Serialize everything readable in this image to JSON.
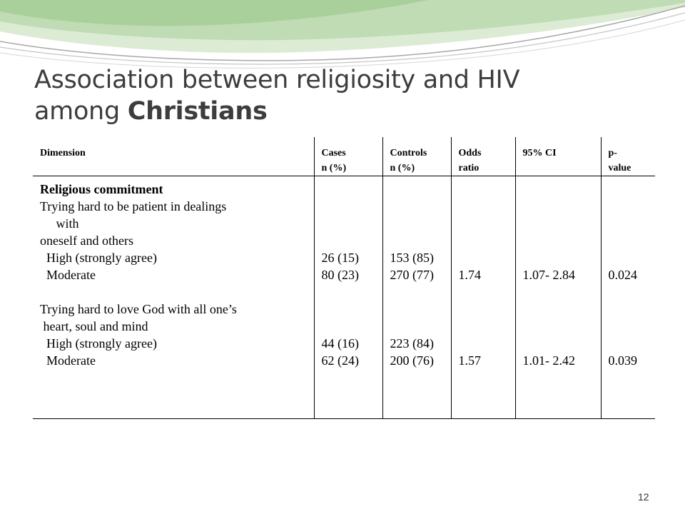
{
  "slide": {
    "title_line1": "Association between religiosity and HIV",
    "title_line2_prefix": "among ",
    "title_line2_bold": "Christians",
    "page_number": "12"
  },
  "table": {
    "headers": {
      "dimension": "Dimension",
      "cases_l1": "Cases",
      "cases_l2": "n (%)",
      "controls_l1": "Controls",
      "controls_l2": "n (%)",
      "odds_l1": "Odds",
      "odds_l2": "ratio",
      "ci": "95% CI",
      "p_l1": "p-",
      "p_l2": "value"
    },
    "dimension_lines": {
      "heading": "Religious commitment",
      "l1": "Trying hard to be patient in dealings",
      "l2": "     with",
      "l3": "oneself and others",
      "l4": "  High (strongly agree)",
      "l5": "  Moderate",
      "l6": "Trying hard to love God with all one’s",
      "l7": " heart, soul and mind",
      "l8": "  High (strongly agree)",
      "l9": "  Moderate"
    },
    "cases": {
      "r1": "26 (15)",
      "r2": "80 (23)",
      "r3": "44 (16)",
      "r4": "62 (24)"
    },
    "controls": {
      "r1": "153 (85)",
      "r2": "270 (77)",
      "r3": "223 (84)",
      "r4": "200 (76)"
    },
    "odds": {
      "r2": "1.74",
      "r4": "1.57"
    },
    "ci": {
      "r2": "1.07- 2.84",
      "r4": "1.01- 2.42"
    },
    "p": {
      "r2": "0.024",
      "r4": "0.039"
    }
  }
}
